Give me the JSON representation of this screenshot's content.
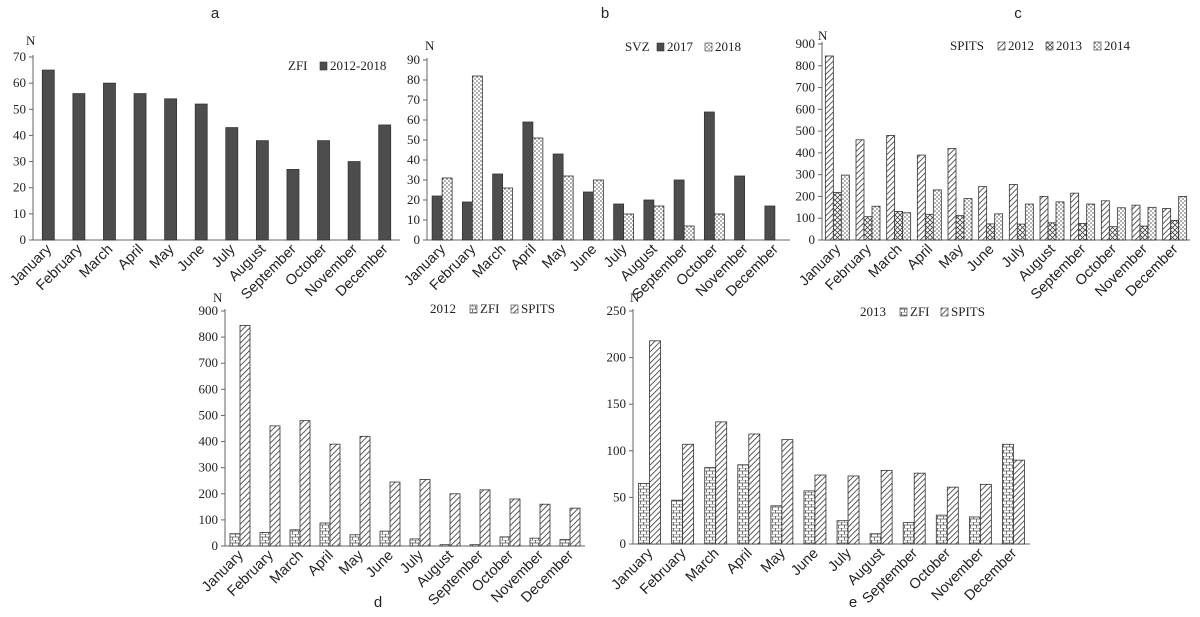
{
  "colors": {
    "dark_bar": "#4d4d4d",
    "stroke": "#333333",
    "axis": "#666666"
  },
  "chart_data": [
    {
      "type": "bar",
      "panel": "a",
      "title": "",
      "y_axis_label": "N",
      "legend_title": "ZFI",
      "categories": [
        "January",
        "February",
        "March",
        "April",
        "May",
        "June",
        "July",
        "August",
        "September",
        "October",
        "November",
        "December"
      ],
      "series": [
        {
          "name": "2012-2018",
          "pattern": "solid",
          "values": [
            65,
            56,
            60,
            56,
            54,
            52,
            43,
            38,
            27,
            38,
            30,
            44
          ]
        }
      ],
      "yticks": [
        0,
        10,
        20,
        30,
        40,
        50,
        60,
        70
      ],
      "ylim": [
        0,
        70
      ]
    },
    {
      "type": "bar",
      "panel": "b",
      "title": "",
      "y_axis_label": "N",
      "legend_title": "SVZ",
      "categories": [
        "January",
        "February",
        "March",
        "April",
        "May",
        "June",
        "July",
        "August",
        "September",
        "October",
        "November",
        "December"
      ],
      "series": [
        {
          "name": "2017",
          "pattern": "solid",
          "values": [
            22,
            19,
            33,
            59,
            43,
            24,
            18,
            20,
            30,
            64,
            32,
            17
          ]
        },
        {
          "name": "2018",
          "pattern": "dots",
          "values": [
            31,
            82,
            26,
            51,
            32,
            30,
            13,
            17,
            7,
            13,
            0,
            0
          ]
        }
      ],
      "yticks": [
        0,
        10,
        20,
        30,
        40,
        50,
        60,
        70,
        80,
        90
      ],
      "ylim": [
        0,
        90
      ]
    },
    {
      "type": "bar",
      "panel": "c",
      "title": "",
      "y_axis_label": "N",
      "legend_title": "SPITS",
      "categories": [
        "January",
        "February",
        "March",
        "April",
        "May",
        "June",
        "July",
        "August",
        "September",
        "October",
        "November",
        "December"
      ],
      "series": [
        {
          "name": "2012",
          "pattern": "diag",
          "values": [
            845,
            460,
            480,
            390,
            420,
            245,
            255,
            200,
            215,
            180,
            160,
            145
          ]
        },
        {
          "name": "2013",
          "pattern": "cross",
          "values": [
            218,
            107,
            131,
            118,
            112,
            74,
            73,
            79,
            76,
            61,
            64,
            90
          ]
        },
        {
          "name": "2014",
          "pattern": "dots",
          "values": [
            298,
            155,
            125,
            230,
            190,
            120,
            165,
            175,
            165,
            148,
            150,
            200
          ]
        }
      ],
      "yticks": [
        0,
        100,
        200,
        300,
        400,
        500,
        600,
        700,
        800,
        900
      ],
      "ylim": [
        0,
        900
      ]
    },
    {
      "type": "bar",
      "panel": "d",
      "title": "",
      "y_axis_label": "N",
      "legend_title": "2012",
      "categories": [
        "January",
        "February",
        "March",
        "April",
        "May",
        "June",
        "July",
        "August",
        "September",
        "October",
        "November",
        "December"
      ],
      "series": [
        {
          "name": "ZFI",
          "pattern": "brick",
          "values": [
            47,
            52,
            62,
            88,
            43,
            57,
            27,
            5,
            5,
            35,
            30,
            25
          ]
        },
        {
          "name": "SPITS",
          "pattern": "diag",
          "values": [
            845,
            460,
            480,
            390,
            420,
            245,
            255,
            200,
            215,
            180,
            160,
            145
          ]
        }
      ],
      "yticks": [
        0,
        100,
        200,
        300,
        400,
        500,
        600,
        700,
        800,
        900
      ],
      "ylim": [
        0,
        900
      ]
    },
    {
      "type": "bar",
      "panel": "e",
      "title": "",
      "y_axis_label": "N",
      "legend_title": "2013",
      "categories": [
        "January",
        "February",
        "March",
        "April",
        "May",
        "June",
        "July",
        "August",
        "September",
        "October",
        "November",
        "December"
      ],
      "series": [
        {
          "name": "ZFI",
          "pattern": "brick",
          "values": [
            65,
            47,
            82,
            85,
            41,
            57,
            25,
            11,
            23,
            31,
            29,
            107
          ]
        },
        {
          "name": "SPITS",
          "pattern": "diag",
          "values": [
            218,
            107,
            131,
            118,
            112,
            74,
            73,
            79,
            76,
            61,
            64,
            90
          ]
        }
      ],
      "yticks": [
        0,
        50,
        100,
        150,
        200,
        250
      ],
      "ylim": [
        0,
        250
      ]
    }
  ]
}
